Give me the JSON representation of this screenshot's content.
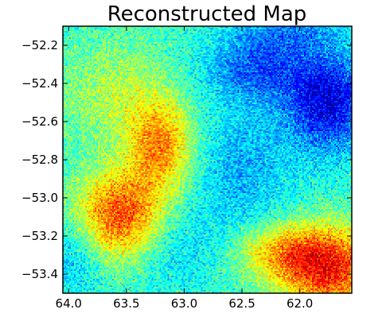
{
  "chart_data": {
    "type": "heatmap",
    "title": "Reconstructed Map",
    "xlabel": "",
    "ylabel": "",
    "xlim": [
      64.05,
      61.55
    ],
    "ylim": [
      -53.5,
      -52.1
    ],
    "x_ticks": [
      64.0,
      63.5,
      63.0,
      62.5,
      62.0
    ],
    "x_tick_labels": [
      "64.0",
      "63.5",
      "63.0",
      "62.5",
      "62.0"
    ],
    "y_ticks": [
      -52.2,
      -52.4,
      -52.6,
      -52.8,
      -53.0,
      -53.2,
      -53.4
    ],
    "y_tick_labels": [
      "−52.2",
      "−52.4",
      "−52.6",
      "−52.8",
      "−53.0",
      "−53.2",
      "−53.4"
    ],
    "colormap": "jet",
    "value_range": [
      0,
      1
    ],
    "background_value": 0.42,
    "noise_amplitude": 0.14,
    "grid": false,
    "legend": "none",
    "features": [
      {
        "kind": "hot",
        "x": 63.55,
        "y": -53.1,
        "sx": 0.28,
        "sy": 0.17,
        "value": 0.82
      },
      {
        "kind": "hot",
        "x": 63.2,
        "y": -52.72,
        "sx": 0.2,
        "sy": 0.17,
        "value": 0.72
      },
      {
        "kind": "hot",
        "x": 61.75,
        "y": -53.37,
        "sx": 0.32,
        "sy": 0.16,
        "value": 0.85
      },
      {
        "kind": "hot",
        "x": 62.2,
        "y": -53.28,
        "sx": 0.28,
        "sy": 0.1,
        "value": 0.62
      },
      {
        "kind": "warm",
        "x": 63.6,
        "y": -52.45,
        "sx": 0.35,
        "sy": 0.2,
        "value": 0.55
      },
      {
        "kind": "cold",
        "x": 61.75,
        "y": -52.5,
        "sx": 0.26,
        "sy": 0.18,
        "value": 0.1
      },
      {
        "kind": "cold",
        "x": 62.35,
        "y": -52.32,
        "sx": 0.32,
        "sy": 0.12,
        "value": 0.22
      },
      {
        "kind": "cold",
        "x": 62.1,
        "y": -52.12,
        "sx": 0.3,
        "sy": 0.08,
        "value": 0.28
      },
      {
        "kind": "cold",
        "x": 62.5,
        "y": -52.85,
        "sx": 0.3,
        "sy": 0.25,
        "value": 0.3
      },
      {
        "kind": "cool",
        "x": 63.15,
        "y": -53.25,
        "sx": 0.3,
        "sy": 0.15,
        "value": 0.32
      },
      {
        "kind": "cool",
        "x": 63.95,
        "y": -53.3,
        "sx": 0.18,
        "sy": 0.16,
        "value": 0.3
      }
    ]
  }
}
